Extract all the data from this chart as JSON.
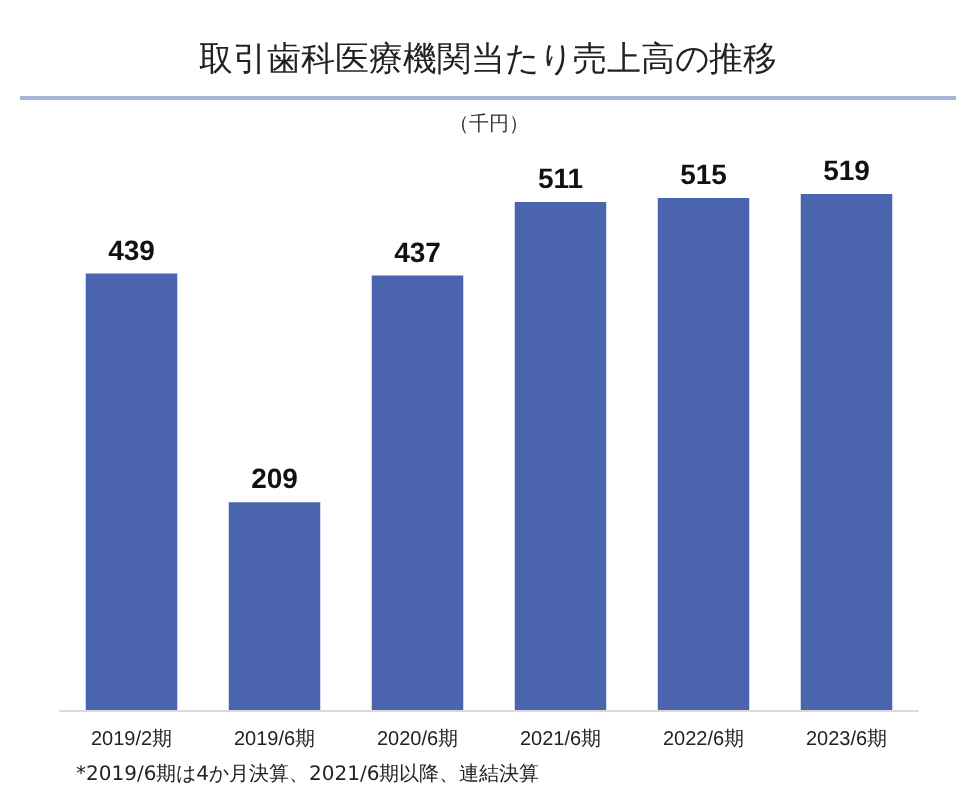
{
  "chart_data": {
    "type": "bar",
    "title": "取引歯科医療機関当たり売上高の推移",
    "subtitle": "（千円）",
    "categories": [
      "2019/2期",
      "2019/6期",
      "2020/6期",
      "2021/6期",
      "2022/6期",
      "2023/6期"
    ],
    "values": [
      439,
      209,
      437,
      511,
      515,
      519
    ],
    "color": "#4a64ae",
    "data_labels": true,
    "annotations": [
      "*2019/6期は4か月決算、2021/6期以降、連結決算"
    ]
  }
}
